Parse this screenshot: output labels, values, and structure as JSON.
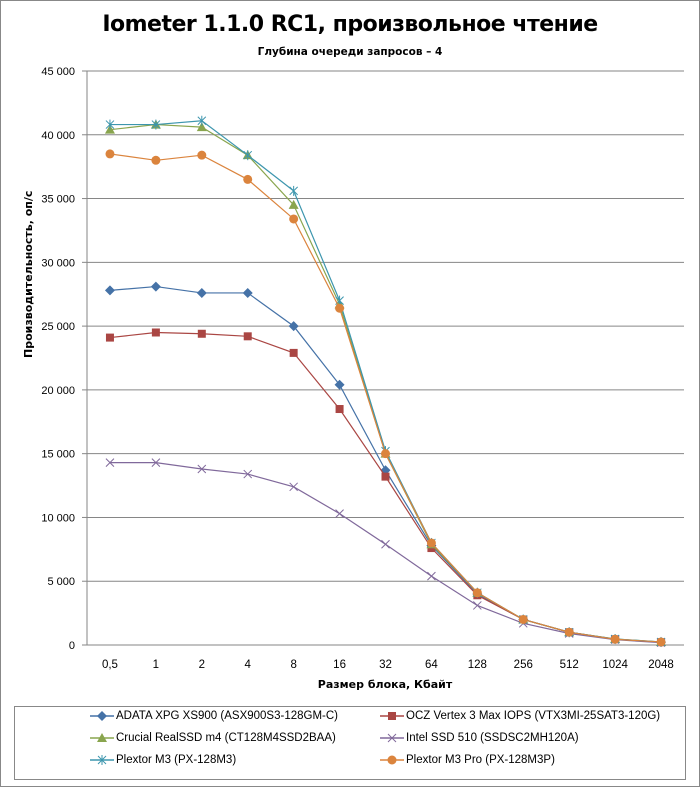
{
  "chart_data": {
    "type": "line",
    "title": "Iometer 1.1.0 RC1, произвольное чтение",
    "subtitle": "Глубина очереди запросов – 4",
    "xlabel": "Размер блока, Кбайт",
    "ylabel": "Производительность,  оп/с",
    "categories": [
      "0,5",
      "1",
      "2",
      "4",
      "8",
      "16",
      "32",
      "64",
      "128",
      "256",
      "512",
      "1024",
      "2048"
    ],
    "ylim": [
      0,
      45000
    ],
    "yticks": [
      0,
      5000,
      10000,
      15000,
      20000,
      25000,
      30000,
      35000,
      40000,
      45000
    ],
    "ytick_labels": [
      "0",
      "5 000",
      "10 000",
      "15 000",
      "20 000",
      "25 000",
      "30 000",
      "35 000",
      "40 000",
      "45 000"
    ],
    "grid": true,
    "legend_position": "bottom",
    "series": [
      {
        "name": "ADATA XPG XS900 (ASX900S3-128GM-C)",
        "color": "#4572a7",
        "marker": "diamond",
        "values": [
          27800,
          28100,
          27600,
          27600,
          25000,
          20400,
          13700,
          7800,
          4000,
          2000,
          1000,
          450,
          230
        ]
      },
      {
        "name": "OCZ Vertex 3 Max IOPS (VTX3MI-25SAT3-120G)",
        "color": "#aa4643",
        "marker": "square",
        "values": [
          24100,
          24500,
          24400,
          24200,
          22900,
          18500,
          13200,
          7600,
          3900,
          2000,
          1000,
          450,
          220
        ]
      },
      {
        "name": "Crucial RealSSD m4 (CT128M4SSD2BAA)",
        "color": "#89a54e",
        "marker": "triangle",
        "values": [
          40400,
          40800,
          40600,
          38400,
          34500,
          26700,
          15000,
          7900,
          4100,
          2000,
          1000,
          470,
          240
        ]
      },
      {
        "name": "Intel SSD 510 (SSDSC2MH120A)",
        "color": "#80699b",
        "marker": "x",
        "values": [
          14300,
          14300,
          13800,
          13400,
          12400,
          10300,
          7900,
          5400,
          3100,
          1700,
          900,
          420,
          180
        ]
      },
      {
        "name": "Plextor M3 (PX-128M3)",
        "color": "#3d96ae",
        "marker": "star",
        "values": [
          40800,
          40800,
          41100,
          38400,
          35600,
          27000,
          15200,
          8000,
          4100,
          2000,
          1000,
          470,
          240
        ]
      },
      {
        "name": "Plextor M3 Pro (PX-128M3P)",
        "color": "#db843d",
        "marker": "circle",
        "values": [
          38500,
          38000,
          38400,
          36500,
          33400,
          26400,
          15000,
          8000,
          4100,
          2000,
          1000,
          450,
          240
        ]
      }
    ]
  }
}
